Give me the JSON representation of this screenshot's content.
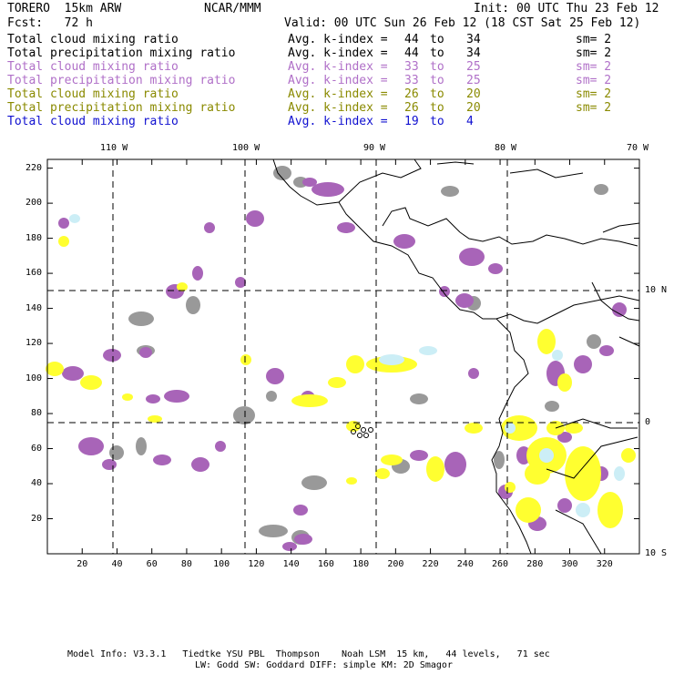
{
  "header": {
    "model": "TORERO  15km ARW",
    "org": "NCAR/MMM",
    "init": "Init: 00 UTC Thu 23 Feb 12",
    "fcst": "Fcst:   72 h",
    "valid": "Valid: 00 UTC Sun 26 Feb 12 (18 CST Sat 25 Feb 12)"
  },
  "legend": [
    {
      "field": "Total cloud mixing ratio",
      "kindex": "Avg. k-index =",
      "hi": "44",
      "to": "to",
      "lo": "34",
      "sm": "sm= 2",
      "color": "#000000"
    },
    {
      "field": "Total precipitation mixing ratio",
      "kindex": "Avg. k-index =",
      "hi": "44",
      "to": "to",
      "lo": "34",
      "sm": "sm= 2",
      "color": "#000000"
    },
    {
      "field": "Total cloud mixing ratio",
      "kindex": "Avg. k-index =",
      "hi": "33",
      "to": "to",
      "lo": "25",
      "sm": "sm= 2",
      "color": "#b070c8"
    },
    {
      "field": "Total precipitation mixing ratio",
      "kindex": "Avg. k-index =",
      "hi": "33",
      "to": "to",
      "lo": "25",
      "sm": "sm= 2",
      "color": "#b070c8"
    },
    {
      "field": "Total cloud mixing ratio",
      "kindex": "Avg. k-index =",
      "hi": "26",
      "to": "to",
      "lo": "20",
      "sm": "sm= 2",
      "color": "#8a8a00"
    },
    {
      "field": "Total precipitation mixing ratio",
      "kindex": "Avg. k-index =",
      "hi": "26",
      "to": "to",
      "lo": "20",
      "sm": "sm= 2",
      "color": "#8a8a00"
    },
    {
      "field": "Total cloud mixing ratio",
      "kindex": "Avg. k-index =",
      "hi": "19",
      "to": "to",
      "lo": "4",
      "sm": "",
      "color": "#1010d0"
    }
  ],
  "axes": {
    "top_lon": [
      "110 W",
      "100 W",
      "90 W",
      "80 W",
      "70 W"
    ],
    "right_lat": [
      "10 N",
      "0",
      "10 S"
    ],
    "x_ticks": [
      "20",
      "40",
      "60",
      "80",
      "100",
      "120",
      "140",
      "160",
      "180",
      "200",
      "220",
      "240",
      "260",
      "280",
      "300",
      "320"
    ],
    "y_ticks": [
      "220",
      "200",
      "180",
      "160",
      "140",
      "120",
      "100",
      "80",
      "60",
      "40",
      "20"
    ]
  },
  "footer": {
    "line1": "Model Info: V3.3.1   Tiedtke YSU PBL  Thompson    Noah LSM  15 km,   44 levels,   71 sec",
    "line2": "LW: Godd SW: Goddard DIFF: simple KM: 2D Smagor"
  },
  "colors": {
    "gray": "#999999",
    "purple": "#a864b8",
    "yellow": "#ffff30",
    "cyan": "#cceef6",
    "coast": "#000000"
  }
}
